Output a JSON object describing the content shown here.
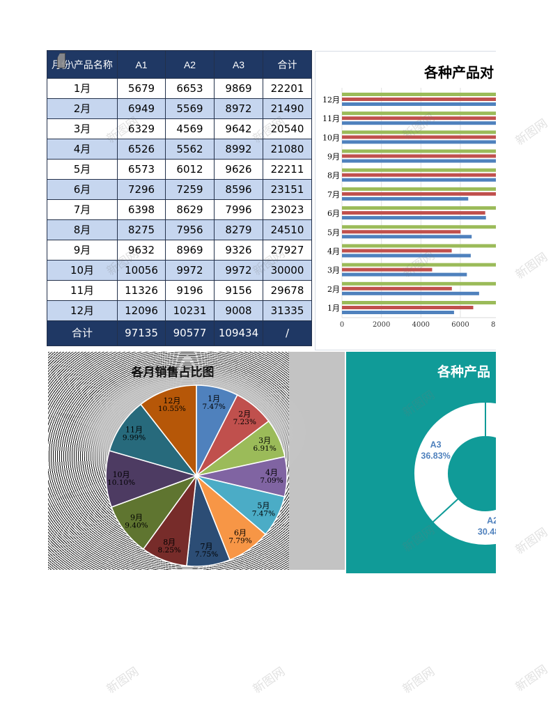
{
  "table": {
    "headers": [
      "月份\\产品名称",
      "A1",
      "A2",
      "A3",
      "合计"
    ],
    "rows": [
      [
        "1月",
        "5679",
        "6653",
        "9869",
        "22201"
      ],
      [
        "2月",
        "6949",
        "5569",
        "8972",
        "21490"
      ],
      [
        "3月",
        "6329",
        "4569",
        "9642",
        "20540"
      ],
      [
        "4月",
        "6526",
        "5562",
        "8992",
        "21080"
      ],
      [
        "5月",
        "6573",
        "6012",
        "9626",
        "22211"
      ],
      [
        "6月",
        "7296",
        "7259",
        "8596",
        "23151"
      ],
      [
        "7月",
        "6398",
        "8629",
        "7996",
        "23023"
      ],
      [
        "8月",
        "8275",
        "7956",
        "8279",
        "24510"
      ],
      [
        "9月",
        "9632",
        "8969",
        "9326",
        "27927"
      ],
      [
        "10月",
        "10056",
        "9972",
        "9972",
        "30000"
      ],
      [
        "11月",
        "11326",
        "9196",
        "9156",
        "29678"
      ],
      [
        "12月",
        "12096",
        "10231",
        "9008",
        "31335"
      ]
    ],
    "total_row": [
      "合计",
      "97135",
      "90577",
      "109434",
      "/"
    ]
  },
  "chart_data": [
    {
      "type": "bar",
      "orientation": "horizontal",
      "title": "各种产品对",
      "categories": [
        "1月",
        "2月",
        "3月",
        "4月",
        "5月",
        "6月",
        "7月",
        "8月",
        "9月",
        "10月",
        "11月",
        "12月"
      ],
      "series": [
        {
          "values": [
            5679,
            6949,
            6329,
            6526,
            6573,
            7296,
            6398,
            8275,
            9632,
            10056,
            11326,
            12096
          ],
          "color": "#4f81bd"
        },
        {
          "values": [
            6653,
            5569,
            4569,
            5562,
            6012,
            7259,
            8629,
            7956,
            8969,
            9972,
            9196,
            10231
          ],
          "color": "#c0504d"
        },
        {
          "values": [
            9869,
            8972,
            9642,
            8992,
            9626,
            8596,
            7996,
            8279,
            9326,
            9972,
            9156,
            9008
          ],
          "color": "#9bbb59"
        }
      ],
      "x_ticks": [
        0,
        2000,
        4000,
        6000,
        8000
      ],
      "grid": true
    },
    {
      "type": "pie",
      "title": "各月销售占比图",
      "categories": [
        "1月",
        "2月",
        "3月",
        "4月",
        "5月",
        "6月",
        "7月",
        "8月",
        "9月",
        "10月",
        "11月",
        "12月"
      ],
      "values": [
        22201,
        21490,
        20540,
        21080,
        22211,
        23151,
        23023,
        24510,
        27927,
        30000,
        29678,
        31335
      ],
      "labels": [
        "7.47%",
        "7.23%",
        "6.91%",
        "7.09%",
        "7.47%",
        "7.79%",
        "7.75%",
        "8.25%",
        "9.40%",
        "10.10%",
        "9.99%",
        "10.55%"
      ],
      "colors": [
        "#4f81bd",
        "#c0504d",
        "#9bbb59",
        "#8064a2",
        "#4bacc6",
        "#f79646",
        "#2c4d75",
        "#772c2a",
        "#5f7530",
        "#4d3b62",
        "#276a7c",
        "#b65708"
      ]
    },
    {
      "type": "pie",
      "subtype": "donut",
      "title": "各种产品",
      "values": [
        97135,
        90577,
        109434
      ],
      "slice_names": [
        null,
        "A2",
        "A3"
      ],
      "slice_percents": [
        null,
        "30.48%",
        "36.83%"
      ],
      "slice_color": "#ffffff"
    }
  ],
  "colors": {
    "table_header": "#1f3864",
    "table_row_alt": "#c6d6ef",
    "donut_background": "#109b98",
    "donut_label": "#4f81bd"
  },
  "watermark": "新图网"
}
